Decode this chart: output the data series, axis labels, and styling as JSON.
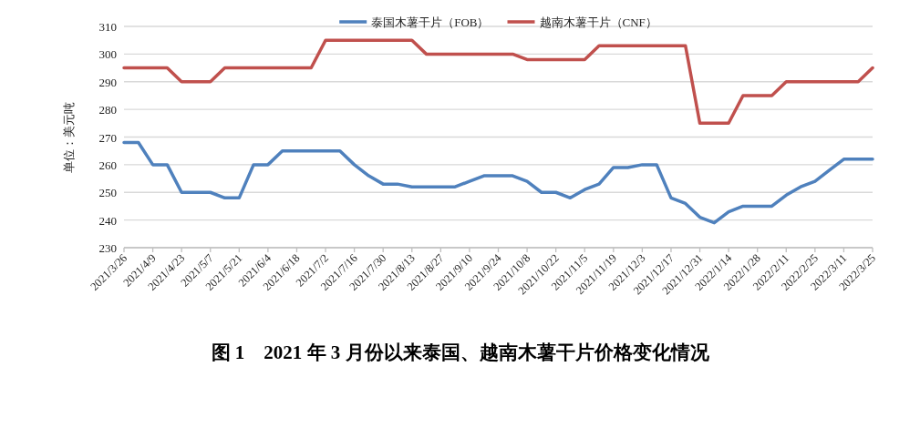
{
  "chart_data": {
    "type": "line",
    "title": "图 1　2021 年 3 月份以来泰国、越南木薯干片价格变化情况",
    "ylabel": "单位：美元吨",
    "categories": [
      "2021/3/26",
      null,
      "2021/4/9",
      null,
      "2021/4/23",
      null,
      "2021/5/7",
      null,
      "2021/5/21",
      null,
      "2021/6/4",
      null,
      "2021/6/18",
      null,
      "2021/7/2",
      null,
      "2021/7/16",
      null,
      "2021/7/30",
      null,
      "2021/8/13",
      null,
      "2021/8/27",
      null,
      "2021/9/10",
      null,
      "2021/9/24",
      null,
      "2021/10/8",
      null,
      "2021/10/22",
      null,
      "2021/11/5",
      null,
      "2021/11/19",
      null,
      "2021/12/3",
      null,
      "2021/12/17",
      null,
      "2021/12/31",
      null,
      "2022/1/14",
      null,
      "2022/1/28",
      null,
      "2022/2/11",
      null,
      "2022/2/25",
      null,
      "2022/3/11",
      null,
      "2022/3/25"
    ],
    "series": [
      {
        "name": "泰国木薯干片（FOB）",
        "color": "#4f81bd",
        "values": [
          268,
          268,
          260,
          260,
          250,
          250,
          250,
          248,
          248,
          260,
          260,
          265,
          265,
          265,
          265,
          265,
          260,
          256,
          253,
          253,
          252,
          252,
          252,
          252,
          254,
          256,
          256,
          256,
          254,
          250,
          250,
          248,
          251,
          253,
          259,
          259,
          260,
          260,
          248,
          246,
          241,
          239,
          243,
          245,
          245,
          245,
          249,
          252,
          254,
          258,
          262,
          262,
          262
        ]
      },
      {
        "name": "越南木薯干片（CNF）",
        "color": "#c0504d",
        "values": [
          295,
          295,
          295,
          295,
          290,
          290,
          290,
          295,
          295,
          295,
          295,
          295,
          295,
          295,
          305,
          305,
          305,
          305,
          305,
          305,
          305,
          300,
          300,
          300,
          300,
          300,
          300,
          300,
          298,
          298,
          298,
          298,
          298,
          303,
          303,
          303,
          303,
          303,
          303,
          303,
          275,
          275,
          275,
          285,
          285,
          285,
          290,
          290,
          290,
          290,
          290,
          290,
          295
        ]
      }
    ],
    "ylim": [
      230,
      310
    ],
    "yticks": [
      230,
      240,
      250,
      260,
      270,
      280,
      290,
      300,
      310
    ],
    "grid": "y",
    "legend": "top",
    "marker": "none",
    "line_style": "solid"
  }
}
